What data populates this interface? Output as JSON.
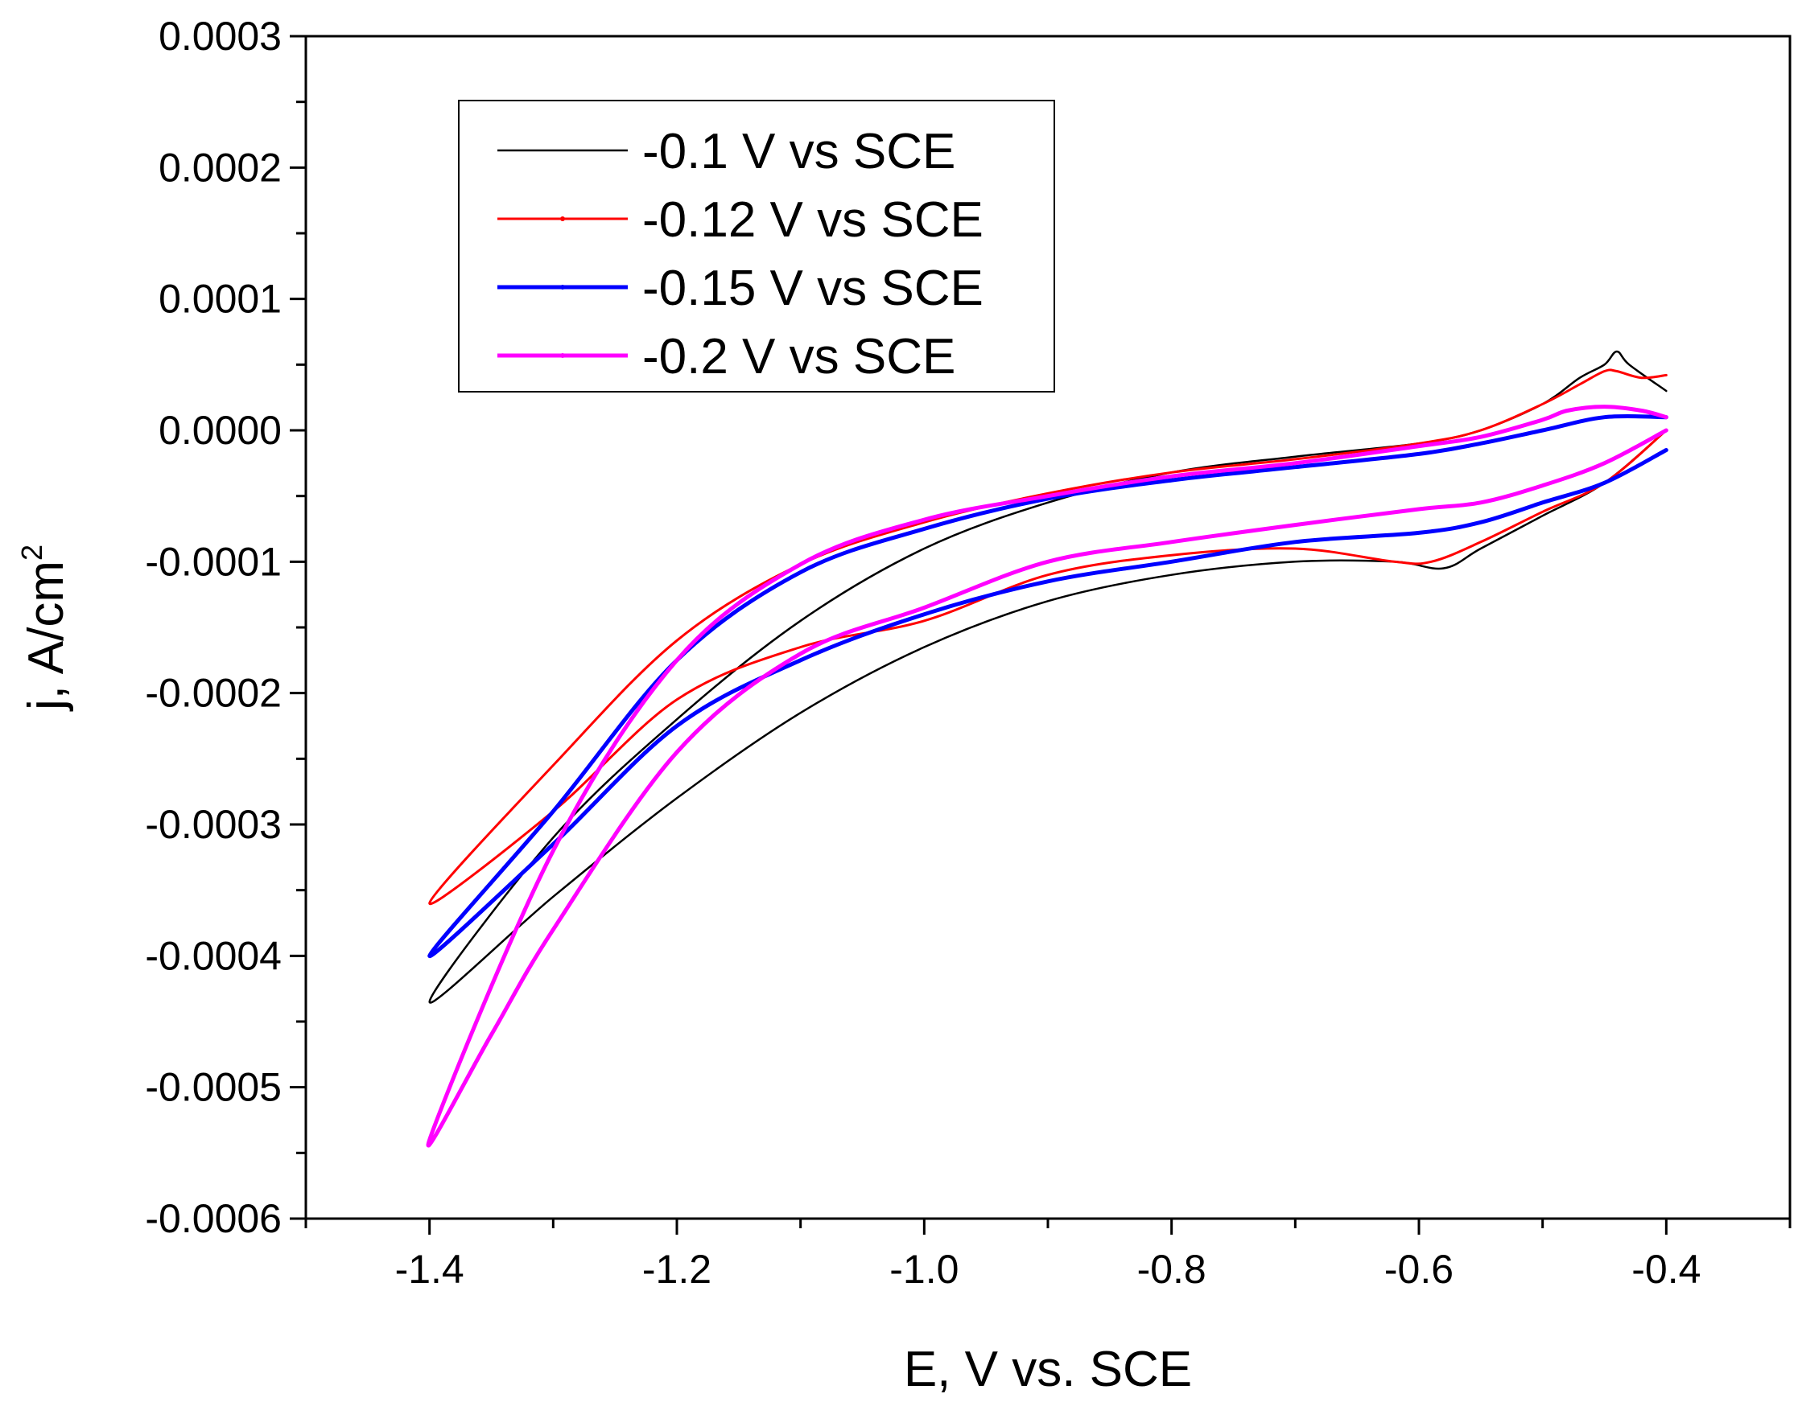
{
  "chart_data": {
    "type": "line",
    "title": "",
    "xlabel": "E, V vs. SCE",
    "ylabel_base": "j, A/cm",
    "ylabel_superscript": "2",
    "xlim": [
      -1.5,
      -0.3
    ],
    "ylim": [
      -0.0006,
      0.0003
    ],
    "x_ticks": [
      -1.4,
      -1.2,
      -1.0,
      -0.8,
      -0.6,
      -0.4
    ],
    "x_tick_labels": [
      "-1.4",
      "-1.2",
      "-1.0",
      "-0.8",
      "-0.6",
      "-0.4"
    ],
    "y_ticks": [
      0.0003,
      0.0002,
      0.0001,
      0.0,
      -0.0001,
      -0.0002,
      -0.0003,
      -0.0004,
      -0.0005,
      -0.0006
    ],
    "y_tick_labels": [
      "0.0003",
      "0.0002",
      "0.0001",
      "0.0000",
      "-0.0001",
      "-0.0002",
      "-0.0003",
      "-0.0004",
      "-0.0005",
      "-0.0006"
    ],
    "legend_position": "top-left",
    "series": [
      {
        "name": "-0.1 V vs SCE",
        "color": "#000000",
        "x": [
          -0.4,
          -0.43,
          -0.44,
          -0.45,
          -0.47,
          -0.5,
          -0.55,
          -0.6,
          -0.7,
          -0.8,
          -0.9,
          -1.0,
          -1.1,
          -1.2,
          -1.3,
          -1.4,
          -1.3,
          -1.2,
          -1.1,
          -1.0,
          -0.9,
          -0.8,
          -0.7,
          -0.62,
          -0.58,
          -0.55,
          -0.5,
          -0.45,
          -0.4
        ],
        "y": [
          3e-05,
          5e-05,
          6e-05,
          5e-05,
          4e-05,
          2e-05,
          0.0,
          -1e-05,
          -2e-05,
          -3.2e-05,
          -5.5e-05,
          -9e-05,
          -0.000145,
          -0.00022,
          -0.00031,
          -0.000435,
          -0.000355,
          -0.00028,
          -0.000215,
          -0.000165,
          -0.00013,
          -0.00011,
          -0.0001,
          -0.0001,
          -0.000105,
          -9e-05,
          -6.5e-05,
          -4e-05,
          0.0
        ]
      },
      {
        "name": "-0.12 V vs SCE",
        "color": "#ff0000",
        "x": [
          -0.4,
          -0.42,
          -0.44,
          -0.45,
          -0.47,
          -0.5,
          -0.55,
          -0.6,
          -0.7,
          -0.8,
          -0.9,
          -1.0,
          -1.1,
          -1.2,
          -1.3,
          -1.4,
          -1.3,
          -1.2,
          -1.1,
          -1.0,
          -0.9,
          -0.8,
          -0.7,
          -0.62,
          -0.59,
          -0.55,
          -0.5,
          -0.45,
          -0.4
        ],
        "y": [
          4.2e-05,
          4e-05,
          4.5e-05,
          4.5e-05,
          3.5e-05,
          2e-05,
          0.0,
          -1e-05,
          -2.2e-05,
          -3.2e-05,
          -4.8e-05,
          -7e-05,
          -0.000102,
          -0.00016,
          -0.000255,
          -0.00036,
          -0.00029,
          -0.000205,
          -0.000165,
          -0.000145,
          -0.00011,
          -9.5e-05,
          -9e-05,
          -0.0001,
          -0.0001,
          -8.5e-05,
          -6.2e-05,
          -4e-05,
          0.0
        ]
      },
      {
        "name": "-0.15 V vs SCE",
        "color": "#0000ff",
        "x": [
          -0.4,
          -0.45,
          -0.5,
          -0.55,
          -0.6,
          -0.7,
          -0.8,
          -0.9,
          -1.0,
          -1.1,
          -1.2,
          -1.3,
          -1.4,
          -1.3,
          -1.2,
          -1.1,
          -1.0,
          -0.9,
          -0.8,
          -0.7,
          -0.6,
          -0.55,
          -0.5,
          -0.45,
          -0.4
        ],
        "y": [
          1e-05,
          1e-05,
          0.0,
          -1e-05,
          -1.8e-05,
          -2.8e-05,
          -3.8e-05,
          -5.2e-05,
          -7.5e-05,
          -0.000108,
          -0.000175,
          -0.00029,
          -0.0004,
          -0.000315,
          -0.000225,
          -0.000175,
          -0.00014,
          -0.000115,
          -0.0001,
          -8.5e-05,
          -7.8e-05,
          -7e-05,
          -5.5e-05,
          -4e-05,
          -1.5e-05
        ]
      },
      {
        "name": "-0.2 V vs SCE",
        "color": "#ff00ff",
        "x": [
          -0.4,
          -0.42,
          -0.45,
          -0.48,
          -0.5,
          -0.55,
          -0.6,
          -0.7,
          -0.8,
          -0.9,
          -1.0,
          -1.1,
          -1.2,
          -1.3,
          -1.4,
          -1.35,
          -1.3,
          -1.2,
          -1.1,
          -1.0,
          -0.9,
          -0.8,
          -0.7,
          -0.6,
          -0.55,
          -0.5,
          -0.45,
          -0.4
        ],
        "y": [
          1e-05,
          1.5e-05,
          1.8e-05,
          1.5e-05,
          8e-06,
          -5e-06,
          -1.2e-05,
          -2.5e-05,
          -3.5e-05,
          -5e-05,
          -6.8e-05,
          -0.000102,
          -0.000175,
          -0.00032,
          -0.00054,
          -0.00046,
          -0.00038,
          -0.000245,
          -0.00017,
          -0.000135,
          -0.0001,
          -8.5e-05,
          -7.2e-05,
          -6e-05,
          -5.5e-05,
          -4.2e-05,
          -2.5e-05,
          0.0
        ]
      }
    ]
  }
}
